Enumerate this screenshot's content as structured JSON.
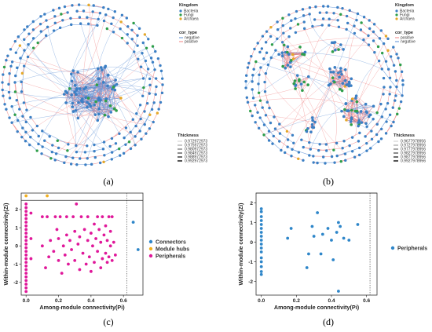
{
  "panels": {
    "a": {
      "caption": "(a)",
      "legend": {
        "kingdom_title": "Kingdom",
        "kingdom_items": [
          "Bacteria",
          "Fungi",
          "Archaea"
        ],
        "cor_title": "cor_type",
        "cor_items": [
          "negative",
          "positive"
        ],
        "thickness_title": "Thickness",
        "thickness_items": [
          "0.972972973",
          "0.975972973",
          "0.980972973",
          "0.984972973",
          "0.988972973",
          "0.992972973"
        ]
      }
    },
    "b": {
      "caption": "(b)",
      "legend": {
        "kingdom_title": "Kingdom",
        "kingdom_items": [
          "Bacteria",
          "Fungi",
          "Archaea"
        ],
        "cor_title": "cor_type",
        "cor_items": [
          "positive",
          "negative"
        ],
        "thickness_title": "Thickness",
        "thickness_items": [
          "0.9677978956",
          "0.9727978956",
          "0.9777978956",
          "0.9827978956",
          "0.9877978956",
          "0.9927978956"
        ]
      }
    },
    "c": {
      "caption": "(c)",
      "legend_items": [
        "Connectors",
        "Module hubs",
        "Peripherals"
      ]
    },
    "d": {
      "caption": "(d)",
      "legend_items": [
        "Peripherals"
      ]
    }
  },
  "colors": {
    "bacteria": "#3b7fc4",
    "fungi": "#2e9e4a",
    "archaea": "#e5a82a",
    "positive_edge": "#f08080",
    "negative_edge": "#5b8fd6",
    "connectors": "#2e86c9",
    "module_hubs": "#f2b01e",
    "peripherals": "#e0189a"
  },
  "chart_data": [
    {
      "type": "scatter",
      "panel": "c",
      "xlabel": "Among-module connectivity(Pi)",
      "ylabel": "Within-module connectivity(Zi)",
      "xlim": [
        -0.03,
        0.72
      ],
      "ylim": [
        -2.7,
        2.9
      ],
      "xticks": [
        0.0,
        0.2,
        0.4,
        0.6
      ],
      "yticks": [
        -2,
        -1,
        0,
        1,
        2
      ],
      "threshold_x": 0.62,
      "threshold_y": 2.5,
      "series": [
        {
          "name": "Connectors",
          "points": [
            [
              0.66,
              1.3
            ],
            [
              0.69,
              -0.2
            ]
          ]
        },
        {
          "name": "Module hubs",
          "points": [
            [
              0.0,
              2.75
            ],
            [
              0.13,
              2.75
            ]
          ]
        },
        {
          "name": "Peripherals",
          "points": [
            [
              0.0,
              2.3
            ],
            [
              0.0,
              2.1
            ],
            [
              0.0,
              1.9
            ],
            [
              0.0,
              1.7
            ],
            [
              0.0,
              1.5
            ],
            [
              0.0,
              1.3
            ],
            [
              0.0,
              1.1
            ],
            [
              0.0,
              0.9
            ],
            [
              0.0,
              0.7
            ],
            [
              0.0,
              0.5
            ],
            [
              0.0,
              0.3
            ],
            [
              0.0,
              0.1
            ],
            [
              0.0,
              -0.1
            ],
            [
              0.0,
              -0.3
            ],
            [
              0.0,
              -0.5
            ],
            [
              0.0,
              -0.7
            ],
            [
              0.0,
              -0.9
            ],
            [
              0.0,
              -1.1
            ],
            [
              0.0,
              -1.3
            ],
            [
              0.0,
              -1.5
            ],
            [
              0.0,
              -1.7
            ],
            [
              0.0,
              -1.9
            ],
            [
              0.0,
              -2.1
            ],
            [
              0.0,
              -2.3
            ],
            [
              0.0,
              -2.5
            ],
            [
              0.03,
              -0.7
            ],
            [
              0.03,
              0.4
            ],
            [
              0.03,
              1.8
            ],
            [
              0.1,
              1.6
            ],
            [
              0.1,
              0.0
            ],
            [
              0.12,
              -1.2
            ],
            [
              0.13,
              1.6
            ],
            [
              0.14,
              -0.6
            ],
            [
              0.15,
              0.3
            ],
            [
              0.17,
              -0.3
            ],
            [
              0.18,
              1.6
            ],
            [
              0.19,
              0.9
            ],
            [
              0.2,
              -0.8
            ],
            [
              0.2,
              0.4
            ],
            [
              0.21,
              1.6
            ],
            [
              0.22,
              -1.5
            ],
            [
              0.23,
              0.0
            ],
            [
              0.24,
              -0.5
            ],
            [
              0.25,
              1.6
            ],
            [
              0.25,
              0.6
            ],
            [
              0.26,
              -1.0
            ],
            [
              0.27,
              0.3
            ],
            [
              0.28,
              -0.2
            ],
            [
              0.29,
              1.6
            ],
            [
              0.3,
              0.8
            ],
            [
              0.3,
              -0.8
            ],
            [
              0.31,
              2.3
            ],
            [
              0.32,
              0.1
            ],
            [
              0.33,
              -1.3
            ],
            [
              0.33,
              0.5
            ],
            [
              0.34,
              1.6
            ],
            [
              0.35,
              -0.4
            ],
            [
              0.36,
              0.9
            ],
            [
              0.37,
              -1.0
            ],
            [
              0.38,
              0.3
            ],
            [
              0.38,
              1.6
            ],
            [
              0.39,
              -0.6
            ],
            [
              0.4,
              0.7
            ],
            [
              0.4,
              -1.4
            ],
            [
              0.41,
              0.0
            ],
            [
              0.42,
              1.2
            ],
            [
              0.42,
              -0.9
            ],
            [
              0.43,
              0.4
            ],
            [
              0.44,
              1.6
            ],
            [
              0.44,
              -0.3
            ],
            [
              0.45,
              0.9
            ],
            [
              0.46,
              -1.2
            ],
            [
              0.46,
              0.2
            ],
            [
              0.47,
              1.6
            ],
            [
              0.47,
              -0.7
            ],
            [
              0.48,
              0.6
            ],
            [
              0.49,
              -0.4
            ],
            [
              0.49,
              1.1
            ],
            [
              0.5,
              -0.9
            ],
            [
              0.5,
              0.3
            ],
            [
              0.51,
              1.6
            ],
            [
              0.51,
              -0.6
            ],
            [
              0.52,
              0.0
            ],
            [
              0.52,
              0.8
            ],
            [
              0.53,
              -0.8
            ],
            [
              0.53,
              1.6
            ],
            [
              0.54,
              0.2
            ],
            [
              0.55,
              -0.5
            ]
          ]
        }
      ]
    },
    {
      "type": "scatter",
      "panel": "d",
      "xlabel": "Among-module connectivity(Pi)",
      "ylabel": "Within-module connectivity(Zi)",
      "xlim": [
        -0.03,
        0.66
      ],
      "ylim": [
        -2.7,
        2.5
      ],
      "xticks": [
        0.0,
        0.2,
        0.4,
        0.6
      ],
      "yticks": [
        -2,
        -1,
        0,
        1,
        2
      ],
      "threshold_x": 0.62,
      "threshold_y": 2.5,
      "series": [
        {
          "name": "Peripherals",
          "points": [
            [
              0.0,
              1.7
            ],
            [
              0.0,
              1.55
            ],
            [
              0.0,
              1.3
            ],
            [
              0.0,
              1.1
            ],
            [
              0.0,
              0.9
            ],
            [
              0.0,
              0.7
            ],
            [
              0.0,
              0.5
            ],
            [
              0.0,
              0.3
            ],
            [
              0.0,
              0.1
            ],
            [
              0.0,
              -0.1
            ],
            [
              0.0,
              -0.3
            ],
            [
              0.0,
              -0.5
            ],
            [
              0.0,
              -0.8
            ],
            [
              0.0,
              -1.0
            ],
            [
              0.0,
              -1.25
            ],
            [
              0.0,
              -1.5
            ],
            [
              0.0,
              -1.65
            ],
            [
              0.15,
              0.2
            ],
            [
              0.17,
              0.7
            ],
            [
              0.26,
              -1.3
            ],
            [
              0.27,
              -0.6
            ],
            [
              0.29,
              0.8
            ],
            [
              0.32,
              1.5
            ],
            [
              0.3,
              0.3
            ],
            [
              0.34,
              -0.6
            ],
            [
              0.35,
              0.4
            ],
            [
              0.38,
              0.7
            ],
            [
              0.4,
              0.1
            ],
            [
              0.41,
              -0.9
            ],
            [
              0.43,
              0.5
            ],
            [
              0.44,
              1.0
            ],
            [
              0.44,
              -2.5
            ],
            [
              0.45,
              0.8
            ],
            [
              0.47,
              0.2
            ],
            [
              0.5,
              0.1
            ],
            [
              0.55,
              0.9
            ]
          ]
        }
      ]
    }
  ]
}
